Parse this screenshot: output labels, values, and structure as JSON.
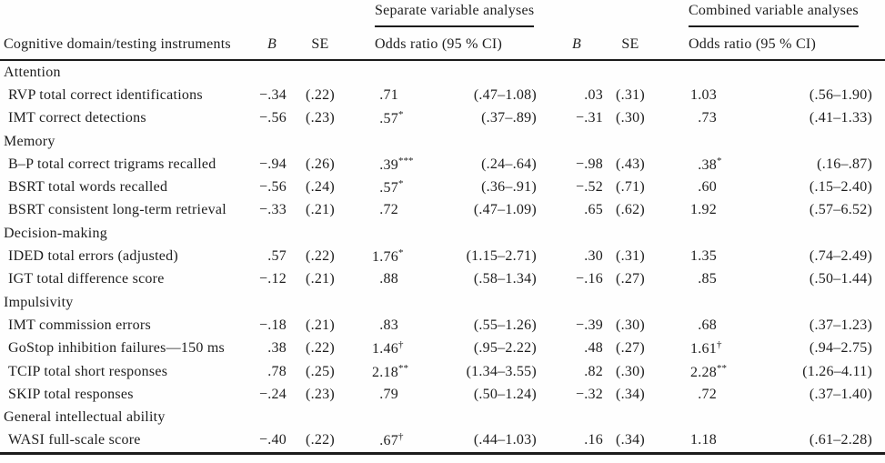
{
  "table": {
    "spanners": {
      "separate": "Separate variable analyses",
      "combined": "Combined variable analyses"
    },
    "columns": {
      "domain": "Cognitive domain/testing instruments",
      "b": "B",
      "se": "SE",
      "odds_ratio": "Odds ratio (95 % CI)"
    }
  },
  "sections": [
    {
      "label": "Attention",
      "rows": [
        {
          "label": "RVP total correct identifications",
          "b1": "−.34",
          "se1": "(.22)",
          "or1": ".71",
          "or1_sup": "",
          "ci1": "(.47–1.08)",
          "b2": ".03",
          "se2": "(.31)",
          "or2": "1.03",
          "or2_sup": "",
          "ci2": "(.56–1.90)"
        },
        {
          "label": "IMT correct detections",
          "b1": "−.56",
          "se1": "(.23)",
          "or1": ".57",
          "or1_sup": "*",
          "ci1": "(.37–.89)",
          "b2": "−.31",
          "se2": "(.30)",
          "or2": ".73",
          "or2_sup": "",
          "ci2": "(.41–1.33)"
        }
      ]
    },
    {
      "label": "Memory",
      "rows": [
        {
          "label": "B–P total correct trigrams recalled",
          "b1": "−.94",
          "se1": "(.26)",
          "or1": ".39",
          "or1_sup": "***",
          "ci1": "(.24–.64)",
          "b2": "−.98",
          "se2": "(.43)",
          "or2": ".38",
          "or2_sup": "*",
          "ci2": "(.16–.87)"
        },
        {
          "label": "BSRT total words recalled",
          "b1": "−.56",
          "se1": "(.24)",
          "or1": ".57",
          "or1_sup": "*",
          "ci1": "(.36–.91)",
          "b2": "−.52",
          "se2": "(.71)",
          "or2": ".60",
          "or2_sup": "",
          "ci2": "(.15–2.40)"
        },
        {
          "label": "BSRT consistent long-term retrieval",
          "b1": "−.33",
          "se1": "(.21)",
          "or1": ".72",
          "or1_sup": "",
          "ci1": "(.47–1.09)",
          "b2": ".65",
          "se2": "(.62)",
          "or2": "1.92",
          "or2_sup": "",
          "ci2": "(.57–6.52)"
        }
      ]
    },
    {
      "label": "Decision-making",
      "rows": [
        {
          "label": "IDED total errors (adjusted)",
          "b1": ".57",
          "se1": "(.22)",
          "or1": "1.76",
          "or1_sup": "*",
          "ci1": "(1.15–2.71)",
          "b2": ".30",
          "se2": "(.31)",
          "or2": "1.35",
          "or2_sup": "",
          "ci2": "(.74–2.49)"
        },
        {
          "label": "IGT total difference score",
          "b1": "−.12",
          "se1": "(.21)",
          "or1": ".88",
          "or1_sup": "",
          "ci1": "(.58–1.34)",
          "b2": "−.16",
          "se2": "(.27)",
          "or2": ".85",
          "or2_sup": "",
          "ci2": "(.50–1.44)"
        }
      ]
    },
    {
      "label": "Impulsivity",
      "rows": [
        {
          "label": "IMT commission errors",
          "b1": "−.18",
          "se1": "(.21)",
          "or1": ".83",
          "or1_sup": "",
          "ci1": "(.55–1.26)",
          "b2": "−.39",
          "se2": "(.30)",
          "or2": ".68",
          "or2_sup": "",
          "ci2": "(.37–1.23)"
        },
        {
          "label": "GoStop inhibition failures—150 ms",
          "b1": ".38",
          "se1": "(.22)",
          "or1": "1.46",
          "or1_sup": "†",
          "ci1": "(.95–2.22)",
          "b2": ".48",
          "se2": "(.27)",
          "or2": "1.61",
          "or2_sup": "†",
          "ci2": "(.94–2.75)"
        },
        {
          "label": "TCIP total short responses",
          "b1": ".78",
          "se1": "(.25)",
          "or1": "2.18",
          "or1_sup": "**",
          "ci1": "(1.34–3.55)",
          "b2": ".82",
          "se2": "(.30)",
          "or2": "2.28",
          "or2_sup": "**",
          "ci2": "(1.26–4.11)"
        },
        {
          "label": "SKIP total responses",
          "b1": "−.24",
          "se1": "(.23)",
          "or1": ".79",
          "or1_sup": "",
          "ci1": "(.50–1.24)",
          "b2": "−.32",
          "se2": "(.34)",
          "or2": ".72",
          "or2_sup": "",
          "ci2": "(.37–1.40)"
        }
      ]
    },
    {
      "label": "General intellectual ability",
      "rows": [
        {
          "label": "WASI full-scale score",
          "b1": "−.40",
          "se1": "(.22)",
          "or1": ".67",
          "or1_sup": "†",
          "ci1": "(.44–1.03)",
          "b2": ".16",
          "se2": "(.34)",
          "or2": "1.18",
          "or2_sup": "",
          "ci2": "(.61–2.28)"
        }
      ]
    }
  ]
}
